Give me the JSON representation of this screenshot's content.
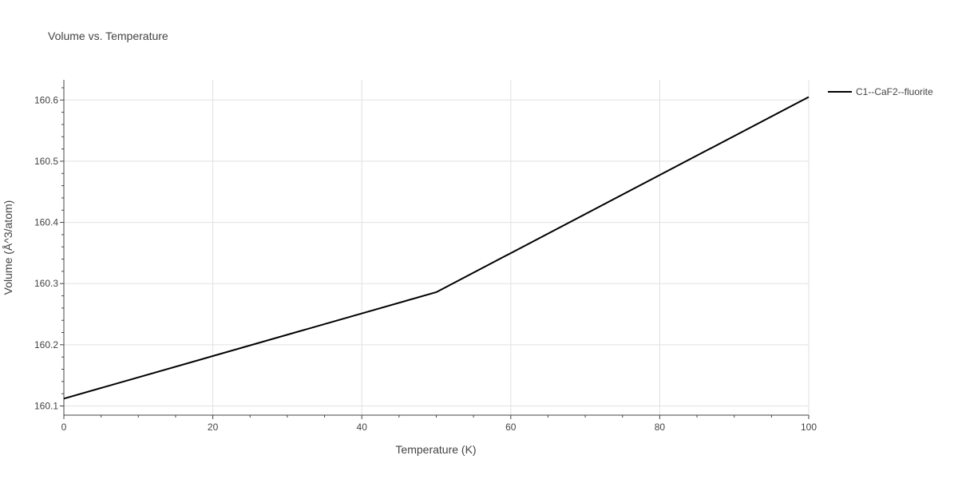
{
  "chart_data": {
    "type": "line",
    "title": "Volume vs. Temperature",
    "xlabel": "Temperature (K)",
    "ylabel": "Volume (Å^3/atom)",
    "xlim": [
      0,
      100
    ],
    "ylim": [
      160.085,
      160.633
    ],
    "x_ticks": [
      0,
      20,
      40,
      60,
      80,
      100
    ],
    "y_ticks": [
      160.1,
      160.2,
      160.3,
      160.4,
      160.5,
      160.6
    ],
    "y_tick_labels": [
      "160.1",
      "160.2",
      "160.3",
      "160.4",
      "160.5",
      "160.6"
    ],
    "x_minor_step": 5,
    "y_minor_step": 0.02,
    "grid": true,
    "legend_position": "top-right-outside",
    "series": [
      {
        "name": "C1--CaF2--fluorite",
        "color": "#000000",
        "x": [
          0,
          50,
          100
        ],
        "y": [
          160.112,
          160.286,
          160.605
        ]
      }
    ]
  }
}
